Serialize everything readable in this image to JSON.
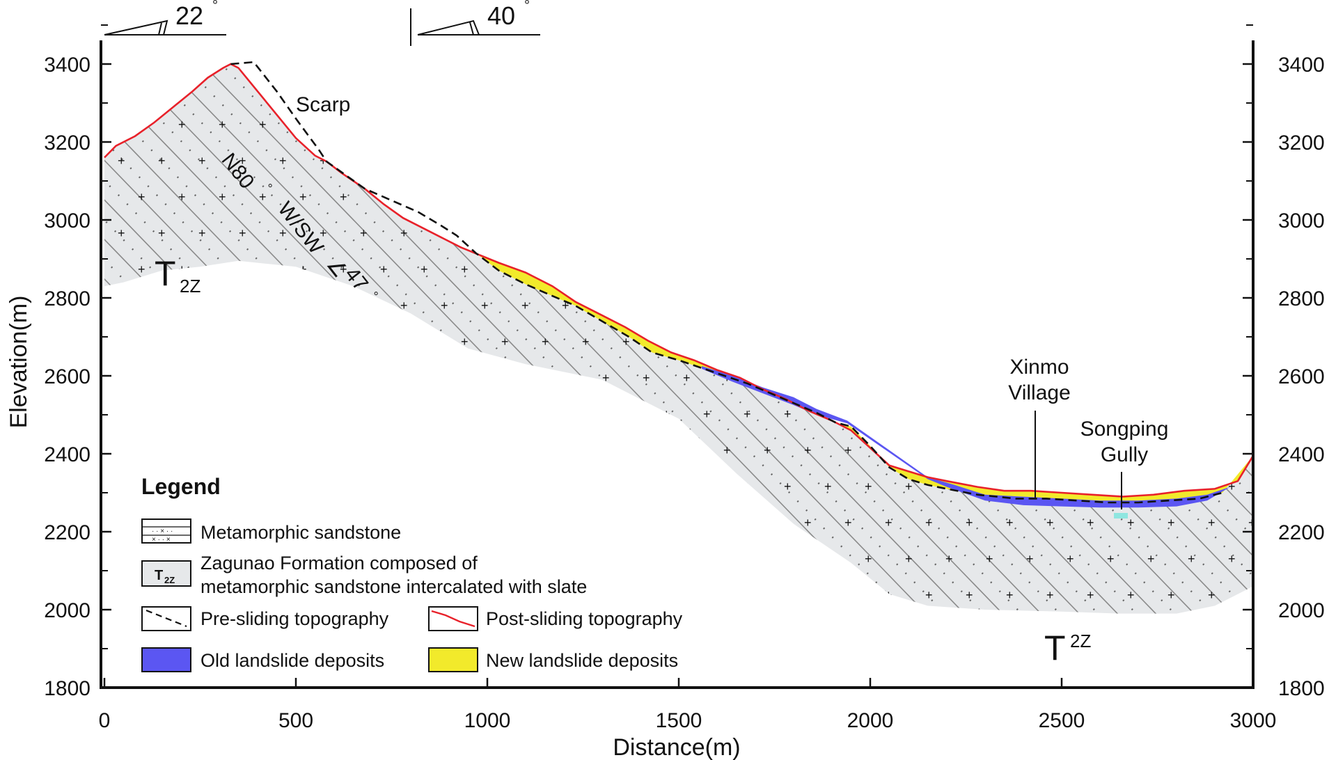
{
  "x_axis": {
    "title": "Distance(m)",
    "ticks": [
      {
        "value": 0,
        "label": "0"
      },
      {
        "value": 500,
        "label": "500"
      },
      {
        "value": 1000,
        "label": "1000"
      },
      {
        "value": 1500,
        "label": "1500"
      },
      {
        "value": 2000,
        "label": "2000"
      },
      {
        "value": 2500,
        "label": "2500"
      },
      {
        "value": 3000,
        "label": "3000"
      }
    ],
    "range": [
      0,
      3000
    ]
  },
  "y_axis": {
    "title": "Elevation(m)",
    "ticks": [
      {
        "value": 1800,
        "label": "1800"
      },
      {
        "value": 2000,
        "label": "2000"
      },
      {
        "value": 2200,
        "label": "2200"
      },
      {
        "value": 2400,
        "label": "2400"
      },
      {
        "value": 2600,
        "label": "2600"
      },
      {
        "value": 2800,
        "label": "2800"
      },
      {
        "value": 3000,
        "label": "3000"
      },
      {
        "value": 3200,
        "label": "3200"
      },
      {
        "value": 3400,
        "label": "3400"
      }
    ],
    "range": [
      1780,
      3560
    ]
  },
  "dip_indicators": [
    {
      "label": "22",
      "degree_sign": "°"
    },
    {
      "label": "40",
      "degree_sign": "°"
    }
  ],
  "labels": {
    "scarp": "Scarp",
    "orientation_1": "N80",
    "orientation_2": "W/SW",
    "orientation_3": "47",
    "degree": "°",
    "formation_main": "T",
    "formation_sub": "2Z",
    "xinmo_1": "Xinmo",
    "xinmo_2": "Village",
    "songping_1": "Songping",
    "songping_2": "Gully"
  },
  "legend": {
    "title": "Legend",
    "sandstone": "Metamorphic sandstone",
    "formation_symbol": "T",
    "formation_symbol_sub": "2Z",
    "formation_line1": "Zagunao Formation composed of",
    "formation_line2": "metamorphic sandstone intercalated with slate",
    "pre_sliding": "Pre-sliding topography",
    "post_sliding": "Post-sliding topography",
    "old_deposits": "Old landslide deposits",
    "new_deposits": "New landslide deposits"
  },
  "colors": {
    "post_sliding_line": "#e8212a",
    "old_deposits": "#5b56f2",
    "new_deposits": "#f2ea2b",
    "bedrock": "#e6e8ea",
    "bedding_lines": "#8a8a8a",
    "gully_water": "#8fe6e0"
  },
  "profiles": {
    "post_sliding": [
      [
        0,
        3160
      ],
      [
        30,
        3190
      ],
      [
        80,
        3215
      ],
      [
        130,
        3250
      ],
      [
        180,
        3290
      ],
      [
        230,
        3330
      ],
      [
        270,
        3365
      ],
      [
        310,
        3390
      ],
      [
        330,
        3400
      ],
      [
        350,
        3390
      ],
      [
        400,
        3330
      ],
      [
        450,
        3270
      ],
      [
        500,
        3210
      ],
      [
        550,
        3165
      ],
      [
        580,
        3150
      ],
      [
        620,
        3120
      ],
      [
        680,
        3080
      ],
      [
        730,
        3040
      ],
      [
        780,
        3005
      ],
      [
        830,
        2980
      ],
      [
        880,
        2955
      ],
      [
        930,
        2930
      ],
      [
        980,
        2910
      ],
      [
        1030,
        2890
      ],
      [
        1100,
        2865
      ],
      [
        1170,
        2830
      ],
      [
        1230,
        2790
      ],
      [
        1300,
        2755
      ],
      [
        1360,
        2725
      ],
      [
        1420,
        2690
      ],
      [
        1480,
        2660
      ],
      [
        1540,
        2640
      ],
      [
        1600,
        2615
      ],
      [
        1660,
        2595
      ],
      [
        1720,
        2565
      ],
      [
        1780,
        2540
      ],
      [
        1840,
        2510
      ],
      [
        1900,
        2485
      ],
      [
        1950,
        2460
      ],
      [
        2000,
        2415
      ],
      [
        2050,
        2370
      ],
      [
        2100,
        2355
      ],
      [
        2150,
        2340
      ],
      [
        2200,
        2330
      ],
      [
        2280,
        2315
      ],
      [
        2350,
        2305
      ],
      [
        2420,
        2305
      ],
      [
        2500,
        2300
      ],
      [
        2580,
        2295
      ],
      [
        2660,
        2290
      ],
      [
        2740,
        2295
      ],
      [
        2820,
        2305
      ],
      [
        2900,
        2310
      ],
      [
        2960,
        2330
      ],
      [
        3000,
        2395
      ]
    ],
    "pre_sliding": [
      [
        330,
        3400
      ],
      [
        390,
        3405
      ],
      [
        450,
        3330
      ],
      [
        500,
        3260
      ],
      [
        560,
        3180
      ],
      [
        580,
        3150
      ],
      [
        680,
        3080
      ],
      [
        750,
        3050
      ],
      [
        820,
        3020
      ],
      [
        880,
        2985
      ],
      [
        920,
        2960
      ],
      [
        970,
        2915
      ],
      [
        1030,
        2870
      ],
      [
        1100,
        2835
      ],
      [
        1170,
        2805
      ],
      [
        1230,
        2780
      ],
      [
        1300,
        2740
      ],
      [
        1370,
        2700
      ],
      [
        1430,
        2660
      ],
      [
        1500,
        2640
      ],
      [
        1560,
        2620
      ],
      [
        1620,
        2600
      ],
      [
        1680,
        2580
      ],
      [
        1740,
        2555
      ],
      [
        1800,
        2530
      ],
      [
        1860,
        2505
      ],
      [
        1910,
        2480
      ],
      [
        1950,
        2470
      ],
      [
        2000,
        2420
      ],
      [
        2050,
        2365
      ],
      [
        2100,
        2335
      ],
      [
        2150,
        2320
      ],
      [
        2200,
        2310
      ],
      [
        2280,
        2295
      ],
      [
        2380,
        2285
      ],
      [
        2460,
        2285
      ],
      [
        2540,
        2280
      ],
      [
        2620,
        2275
      ],
      [
        2700,
        2275
      ],
      [
        2780,
        2280
      ],
      [
        2860,
        2285
      ],
      [
        2920,
        2300
      ]
    ],
    "old_deposit_top": [
      [
        1560,
        2625
      ],
      [
        1640,
        2600
      ],
      [
        1720,
        2570
      ],
      [
        1800,
        2545
      ],
      [
        1860,
        2515
      ],
      [
        1940,
        2485
      ],
      [
        2150,
        2340
      ],
      [
        2220,
        2320
      ],
      [
        2300,
        2295
      ],
      [
        2400,
        2290
      ],
      [
        2500,
        2285
      ],
      [
        2600,
        2280
      ],
      [
        2700,
        2280
      ],
      [
        2800,
        2285
      ],
      [
        2880,
        2295
      ],
      [
        2940,
        2315
      ]
    ],
    "old_deposit_bottom": [
      [
        2940,
        2315
      ],
      [
        2880,
        2280
      ],
      [
        2800,
        2265
      ],
      [
        2700,
        2262
      ],
      [
        2600,
        2262
      ],
      [
        2500,
        2265
      ],
      [
        2400,
        2268
      ],
      [
        2300,
        2280
      ],
      [
        2200,
        2315
      ],
      [
        2150,
        2335
      ],
      [
        1940,
        2478
      ],
      [
        1860,
        2500
      ],
      [
        1800,
        2525
      ],
      [
        1720,
        2555
      ],
      [
        1640,
        2585
      ],
      [
        1560,
        2618
      ]
    ]
  }
}
